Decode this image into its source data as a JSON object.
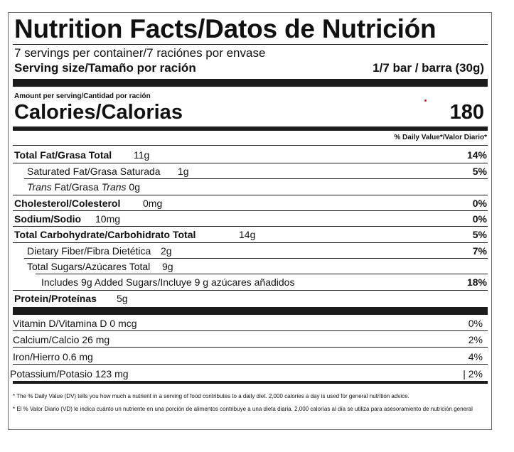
{
  "title": "Nutrition Facts/Datos de Nutrición",
  "servings": "7 servings per container/7 raciónes por envase",
  "serving_size_label": "Serving size/Tamaño por ración",
  "serving_size_value": "1/7 bar / barra (30g)",
  "amount_label": "Amount per serving/Cantidad por ración",
  "calories_label": "Calories/Calorias",
  "calories_value": "180",
  "dv_header": "% Daily Value*/Valor Diario*",
  "nutrients": {
    "total_fat": {
      "name": "Total Fat/Grasa Total",
      "amount": "11g",
      "dv": "14%"
    },
    "sat_fat": {
      "name": "Saturated Fat/Grasa Saturada",
      "amount": "1g",
      "dv": "5%"
    },
    "trans_fat": {
      "name_pre": "Trans",
      "name_mid": " Fat/Grasa ",
      "name_post": "Trans",
      "amount": "0g"
    },
    "cholesterol": {
      "name": "Cholesterol/Colesterol",
      "amount": "0mg",
      "dv": "0%"
    },
    "sodium": {
      "name": "Sodium/Sodio",
      "amount": "10mg",
      "dv": "0%"
    },
    "total_carb": {
      "name": "Total Carbohydrate/Carbohidrato Total",
      "amount": "14g",
      "dv": "5%"
    },
    "fiber": {
      "name": "Dietary Fiber/Fibra Dietética",
      "amount": "2g",
      "dv": "7%"
    },
    "total_sugars": {
      "name": "Total Sugars/Azúcares Total",
      "amount": "9g"
    },
    "added_sugars": {
      "name": "Includes 9g Added Sugars/Incluye 9 g azúcares añadidos",
      "dv": "18%"
    },
    "protein": {
      "name": "Protein/Proteínas",
      "amount": "5g"
    }
  },
  "vitamins": {
    "vitamin_d": {
      "name": "Vitamin D/Vitamina D 0 mcg",
      "dv": "0%"
    },
    "calcium": {
      "name": "Calcium/Calcio 26 mg",
      "dv": "2%"
    },
    "iron": {
      "name": "Iron/Hierro 0.6 mg",
      "dv": "4%"
    },
    "potassium": {
      "name": "Potassium/Potasio 123 mg",
      "dv": "| 2%"
    }
  },
  "footnotes": {
    "en": "* The % Daily Value (DV) tells you how much a nutrient in a serving of food contributes to a daily diet. 2,000 calories a day is used for general nutrition advice.",
    "es": "* El % Valor Diario (VD) le indica cuánto un nutriente en una porción de alimentos contribuye a una dieta diaria. 2,000 calorías al día se utiliza para asesoramiento de nutrición general"
  }
}
